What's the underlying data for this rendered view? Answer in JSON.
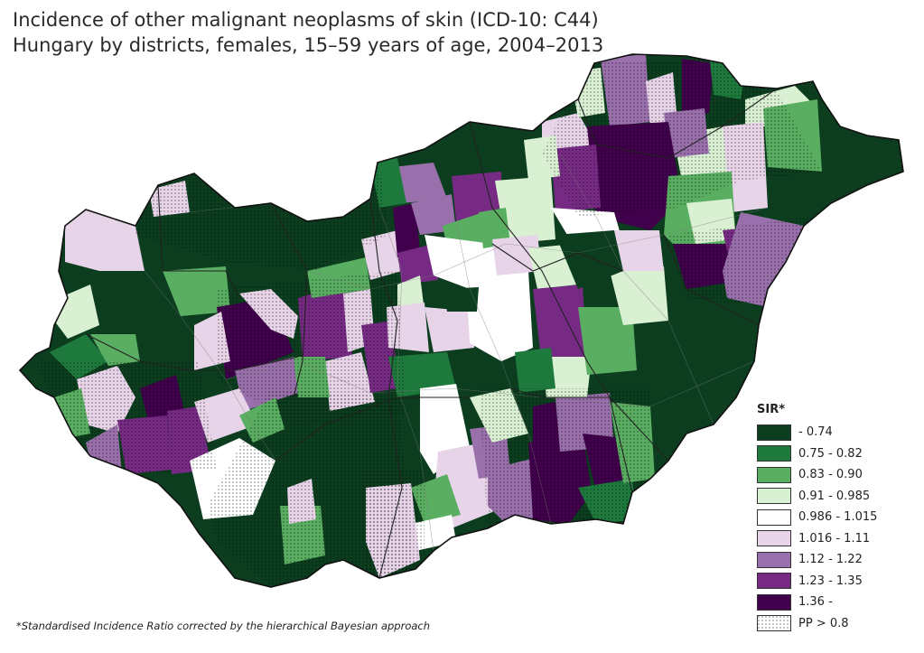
{
  "title": {
    "line1": "Incidence of other malignant neoplasms of skin (ICD-10: C44)",
    "line2": "Hungary by districts, females, 15–59 years of age, 2004–2013"
  },
  "legend": {
    "title": "SIR*",
    "classes": [
      {
        "label": "- 0.74",
        "color": "#0b3d1e"
      },
      {
        "label": "0.75 - 0.82",
        "color": "#1e7a3c"
      },
      {
        "label": "0.83 - 0.90",
        "color": "#5aae61"
      },
      {
        "label": "0.91 - 0.985",
        "color": "#d9f0d3"
      },
      {
        "label": "0.986 - 1.015",
        "color": "#ffffff"
      },
      {
        "label": "1.016 - 1.11",
        "color": "#e7d4e8"
      },
      {
        "label": "1.12 - 1.22",
        "color": "#9970ab"
      },
      {
        "label": "1.23 - 1.35",
        "color": "#762a83"
      },
      {
        "label": "1.36 -",
        "color": "#40004b"
      }
    ],
    "pp_label": "PP > 0.8"
  },
  "footnote": "*Standardised Incidence Ratio corrected by the hierarchical Bayesian approach",
  "map_classes": {
    "c0": "#0b3d1e",
    "c1": "#1e7a3c",
    "c2": "#5aae61",
    "c3": "#d9f0d3",
    "c4": "#ffffff",
    "c5": "#e7d4e8",
    "c6": "#9970ab",
    "c7": "#762a83",
    "c8": "#40004b"
  }
}
